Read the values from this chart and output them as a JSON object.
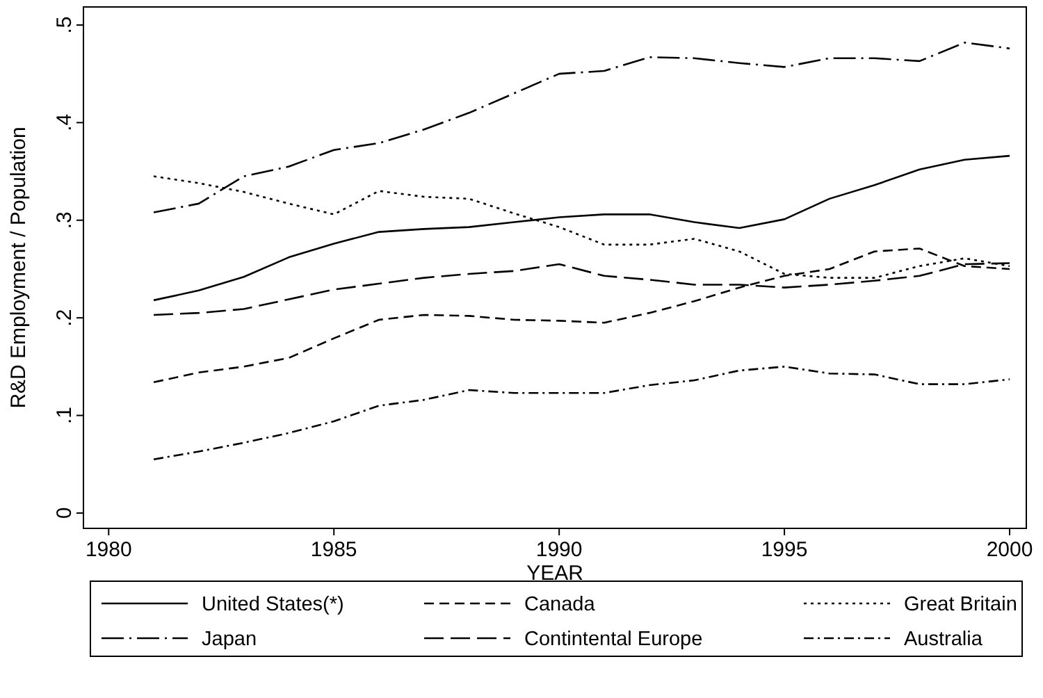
{
  "chart_data": {
    "type": "line",
    "xlabel": "YEAR",
    "ylabel": "R&D Employment / Population",
    "x": [
      1981,
      1982,
      1983,
      1984,
      1985,
      1986,
      1987,
      1988,
      1989,
      1990,
      1991,
      1992,
      1993,
      1994,
      1995,
      1996,
      1997,
      1998,
      1999,
      2000
    ],
    "xlim": [
      1979.44,
      2000.37
    ],
    "xticks": [
      1980,
      1985,
      1990,
      1995,
      2000
    ],
    "ylim": [
      -0.0157,
      0.5185
    ],
    "yticks": [
      0,
      {
        "value": 0.1,
        "label": ".1"
      },
      {
        "value": 0.2,
        "label": ".2"
      },
      {
        "value": 0.3,
        "label": ".3"
      },
      {
        "value": 0.4,
        "label": ".4"
      },
      {
        "value": 0.5,
        "label": ".5"
      }
    ],
    "grid": false,
    "legend": "bottom",
    "marker": "none",
    "series": [
      {
        "name": "United States(*)",
        "color": "#000000",
        "line_style": "solid",
        "values": [
          0.218,
          0.228,
          0.242,
          0.262,
          0.276,
          0.288,
          0.291,
          0.293,
          0.298,
          0.303,
          0.306,
          0.306,
          0.298,
          0.292,
          0.301,
          0.322,
          0.336,
          0.352,
          0.362,
          0.366
        ]
      },
      {
        "name": "Canada",
        "color": "#000000",
        "line_style": "dashed",
        "values": [
          0.134,
          0.144,
          0.15,
          0.159,
          0.179,
          0.198,
          0.203,
          0.202,
          0.198,
          0.197,
          0.195,
          0.205,
          0.217,
          0.231,
          0.243,
          0.25,
          0.268,
          0.271,
          0.253,
          0.25
        ]
      },
      {
        "name": "Great Britain",
        "color": "#000000",
        "line_style": "dotted",
        "values": [
          0.345,
          0.338,
          0.329,
          0.317,
          0.306,
          0.33,
          0.324,
          0.322,
          0.307,
          0.293,
          0.275,
          0.275,
          0.281,
          0.268,
          0.245,
          0.241,
          0.241,
          0.253,
          0.261,
          0.253
        ]
      },
      {
        "name": "Japan",
        "color": "#000000",
        "line_style": "longdashdot",
        "values": [
          0.308,
          0.317,
          0.345,
          0.355,
          0.372,
          0.379,
          0.393,
          0.41,
          0.43,
          0.45,
          0.453,
          0.467,
          0.466,
          0.461,
          0.457,
          0.466,
          0.466,
          0.463,
          0.482,
          0.476
        ]
      },
      {
        "name": "Contintental Europe",
        "color": "#000000",
        "line_style": "longdash",
        "values": [
          0.203,
          0.205,
          0.209,
          0.219,
          0.229,
          0.235,
          0.241,
          0.245,
          0.248,
          0.255,
          0.243,
          0.239,
          0.234,
          0.234,
          0.231,
          0.234,
          0.238,
          0.243,
          0.255,
          0.256
        ]
      },
      {
        "name": "Australia",
        "color": "#000000",
        "line_style": "dashdot",
        "values": [
          0.055,
          0.063,
          0.072,
          0.082,
          0.094,
          0.11,
          0.116,
          0.126,
          0.123,
          0.123,
          0.123,
          0.131,
          0.136,
          0.146,
          0.15,
          0.143,
          0.142,
          0.132,
          0.132,
          0.137
        ]
      }
    ]
  }
}
